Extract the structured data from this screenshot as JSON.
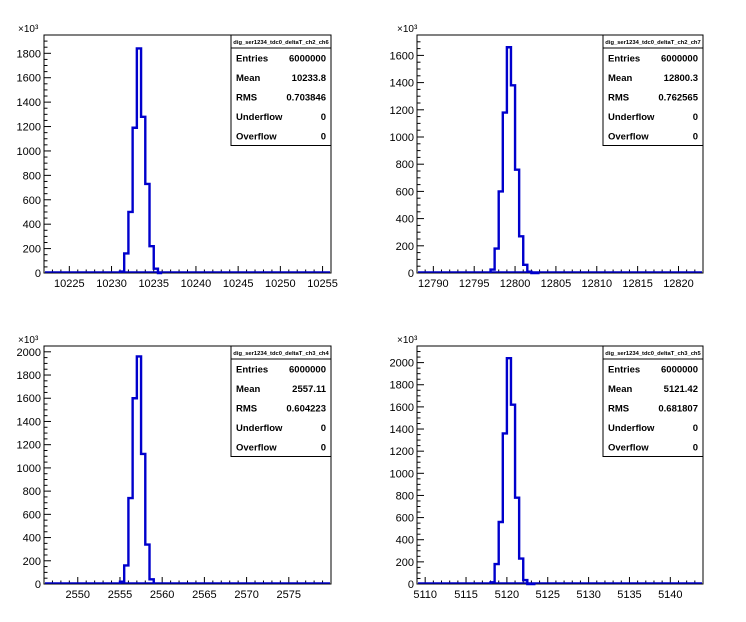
{
  "colors": {
    "line": "#0000cc",
    "axis": "#000000",
    "background": "#ffffff"
  },
  "chart_data": [
    {
      "type": "histogram",
      "title": "dig_ser1234_tdc0_deltaT_ch2_ch6",
      "exponent_label": "×10³",
      "xlim": [
        10222,
        10256
      ],
      "ylim": [
        0,
        1950
      ],
      "xticks": [
        10225,
        10230,
        10235,
        10240,
        10245,
        10250,
        10255
      ],
      "yticks": [
        0,
        200,
        400,
        600,
        800,
        1000,
        1200,
        1400,
        1600,
        1800
      ],
      "bin_width": 0.5,
      "bins_x": [
        10231,
        10231.5,
        10232,
        10232.5,
        10233,
        10233.5,
        10234,
        10234.5,
        10235,
        10235.5,
        10236
      ],
      "bins_y": [
        12,
        160,
        500,
        1190,
        1840,
        1280,
        730,
        220,
        35,
        0
      ],
      "stats": [
        {
          "label": "Entries",
          "value": "6000000"
        },
        {
          "label": "Mean",
          "value": "10233.8"
        },
        {
          "label": "RMS",
          "value": "0.703846"
        },
        {
          "label": "Underflow",
          "value": "0"
        },
        {
          "label": "Overflow",
          "value": "0"
        }
      ]
    },
    {
      "type": "histogram",
      "title": "dig_ser1234_tdc0_deltaT_ch2_ch7",
      "exponent_label": "×10³",
      "xlim": [
        12788,
        12823
      ],
      "ylim": [
        0,
        1750
      ],
      "xticks": [
        12790,
        12795,
        12800,
        12805,
        12810,
        12815,
        12820
      ],
      "yticks": [
        0,
        200,
        400,
        600,
        800,
        1000,
        1200,
        1400,
        1600
      ],
      "bin_width": 0.5,
      "bins_x": [
        12797,
        12797.5,
        12798,
        12798.5,
        12799,
        12799.5,
        12800,
        12800.5,
        12801,
        12801.5,
        12802,
        12802.5,
        12803
      ],
      "bins_y": [
        25,
        180,
        600,
        1180,
        1660,
        1380,
        760,
        270,
        60,
        10,
        0,
        0
      ],
      "stats": [
        {
          "label": "Entries",
          "value": "6000000"
        },
        {
          "label": "Mean",
          "value": "12800.3"
        },
        {
          "label": "RMS",
          "value": "0.762565"
        },
        {
          "label": "Underflow",
          "value": "0"
        },
        {
          "label": "Overflow",
          "value": "0"
        }
      ]
    },
    {
      "type": "histogram",
      "title": "dig_ser1234_tdc0_deltaT_ch3_ch4",
      "exponent_label": "×10³",
      "xlim": [
        2546,
        2580
      ],
      "ylim": [
        0,
        2050
      ],
      "xticks": [
        2550,
        2555,
        2560,
        2565,
        2570,
        2575
      ],
      "yticks": [
        0,
        200,
        400,
        600,
        800,
        1000,
        1200,
        1400,
        1600,
        1800,
        2000
      ],
      "bin_width": 0.5,
      "bins_x": [
        2555,
        2555.5,
        2556,
        2556.5,
        2557,
        2557.5,
        2558,
        2558.5,
        2559
      ],
      "bins_y": [
        20,
        160,
        740,
        1600,
        1960,
        1120,
        340,
        40
      ],
      "stats": [
        {
          "label": "Entries",
          "value": "6000000"
        },
        {
          "label": "Mean",
          "value": "2557.11"
        },
        {
          "label": "RMS",
          "value": "0.604223"
        },
        {
          "label": "Underflow",
          "value": "0"
        },
        {
          "label": "Overflow",
          "value": "0"
        }
      ]
    },
    {
      "type": "histogram",
      "title": "dig_ser1234_tdc0_deltaT_ch3_ch5",
      "exponent_label": "×10³",
      "xlim": [
        5109,
        5144
      ],
      "ylim": [
        0,
        2150
      ],
      "xticks": [
        5110,
        5115,
        5120,
        5125,
        5130,
        5135,
        5140
      ],
      "yticks": [
        0,
        200,
        400,
        600,
        800,
        1000,
        1200,
        1400,
        1600,
        1800,
        2000
      ],
      "bin_width": 0.5,
      "bins_x": [
        5118,
        5118.5,
        5119,
        5119.5,
        5120,
        5120.5,
        5121,
        5121.5,
        5122,
        5122.5,
        5123,
        5123.5
      ],
      "bins_y": [
        15,
        180,
        560,
        1360,
        2040,
        1620,
        780,
        230,
        35,
        0,
        0
      ],
      "stats": [
        {
          "label": "Entries",
          "value": "6000000"
        },
        {
          "label": "Mean",
          "value": "5121.42"
        },
        {
          "label": "RMS",
          "value": "0.681807"
        },
        {
          "label": "Underflow",
          "value": "0"
        },
        {
          "label": "Overflow",
          "value": "0"
        }
      ]
    }
  ]
}
